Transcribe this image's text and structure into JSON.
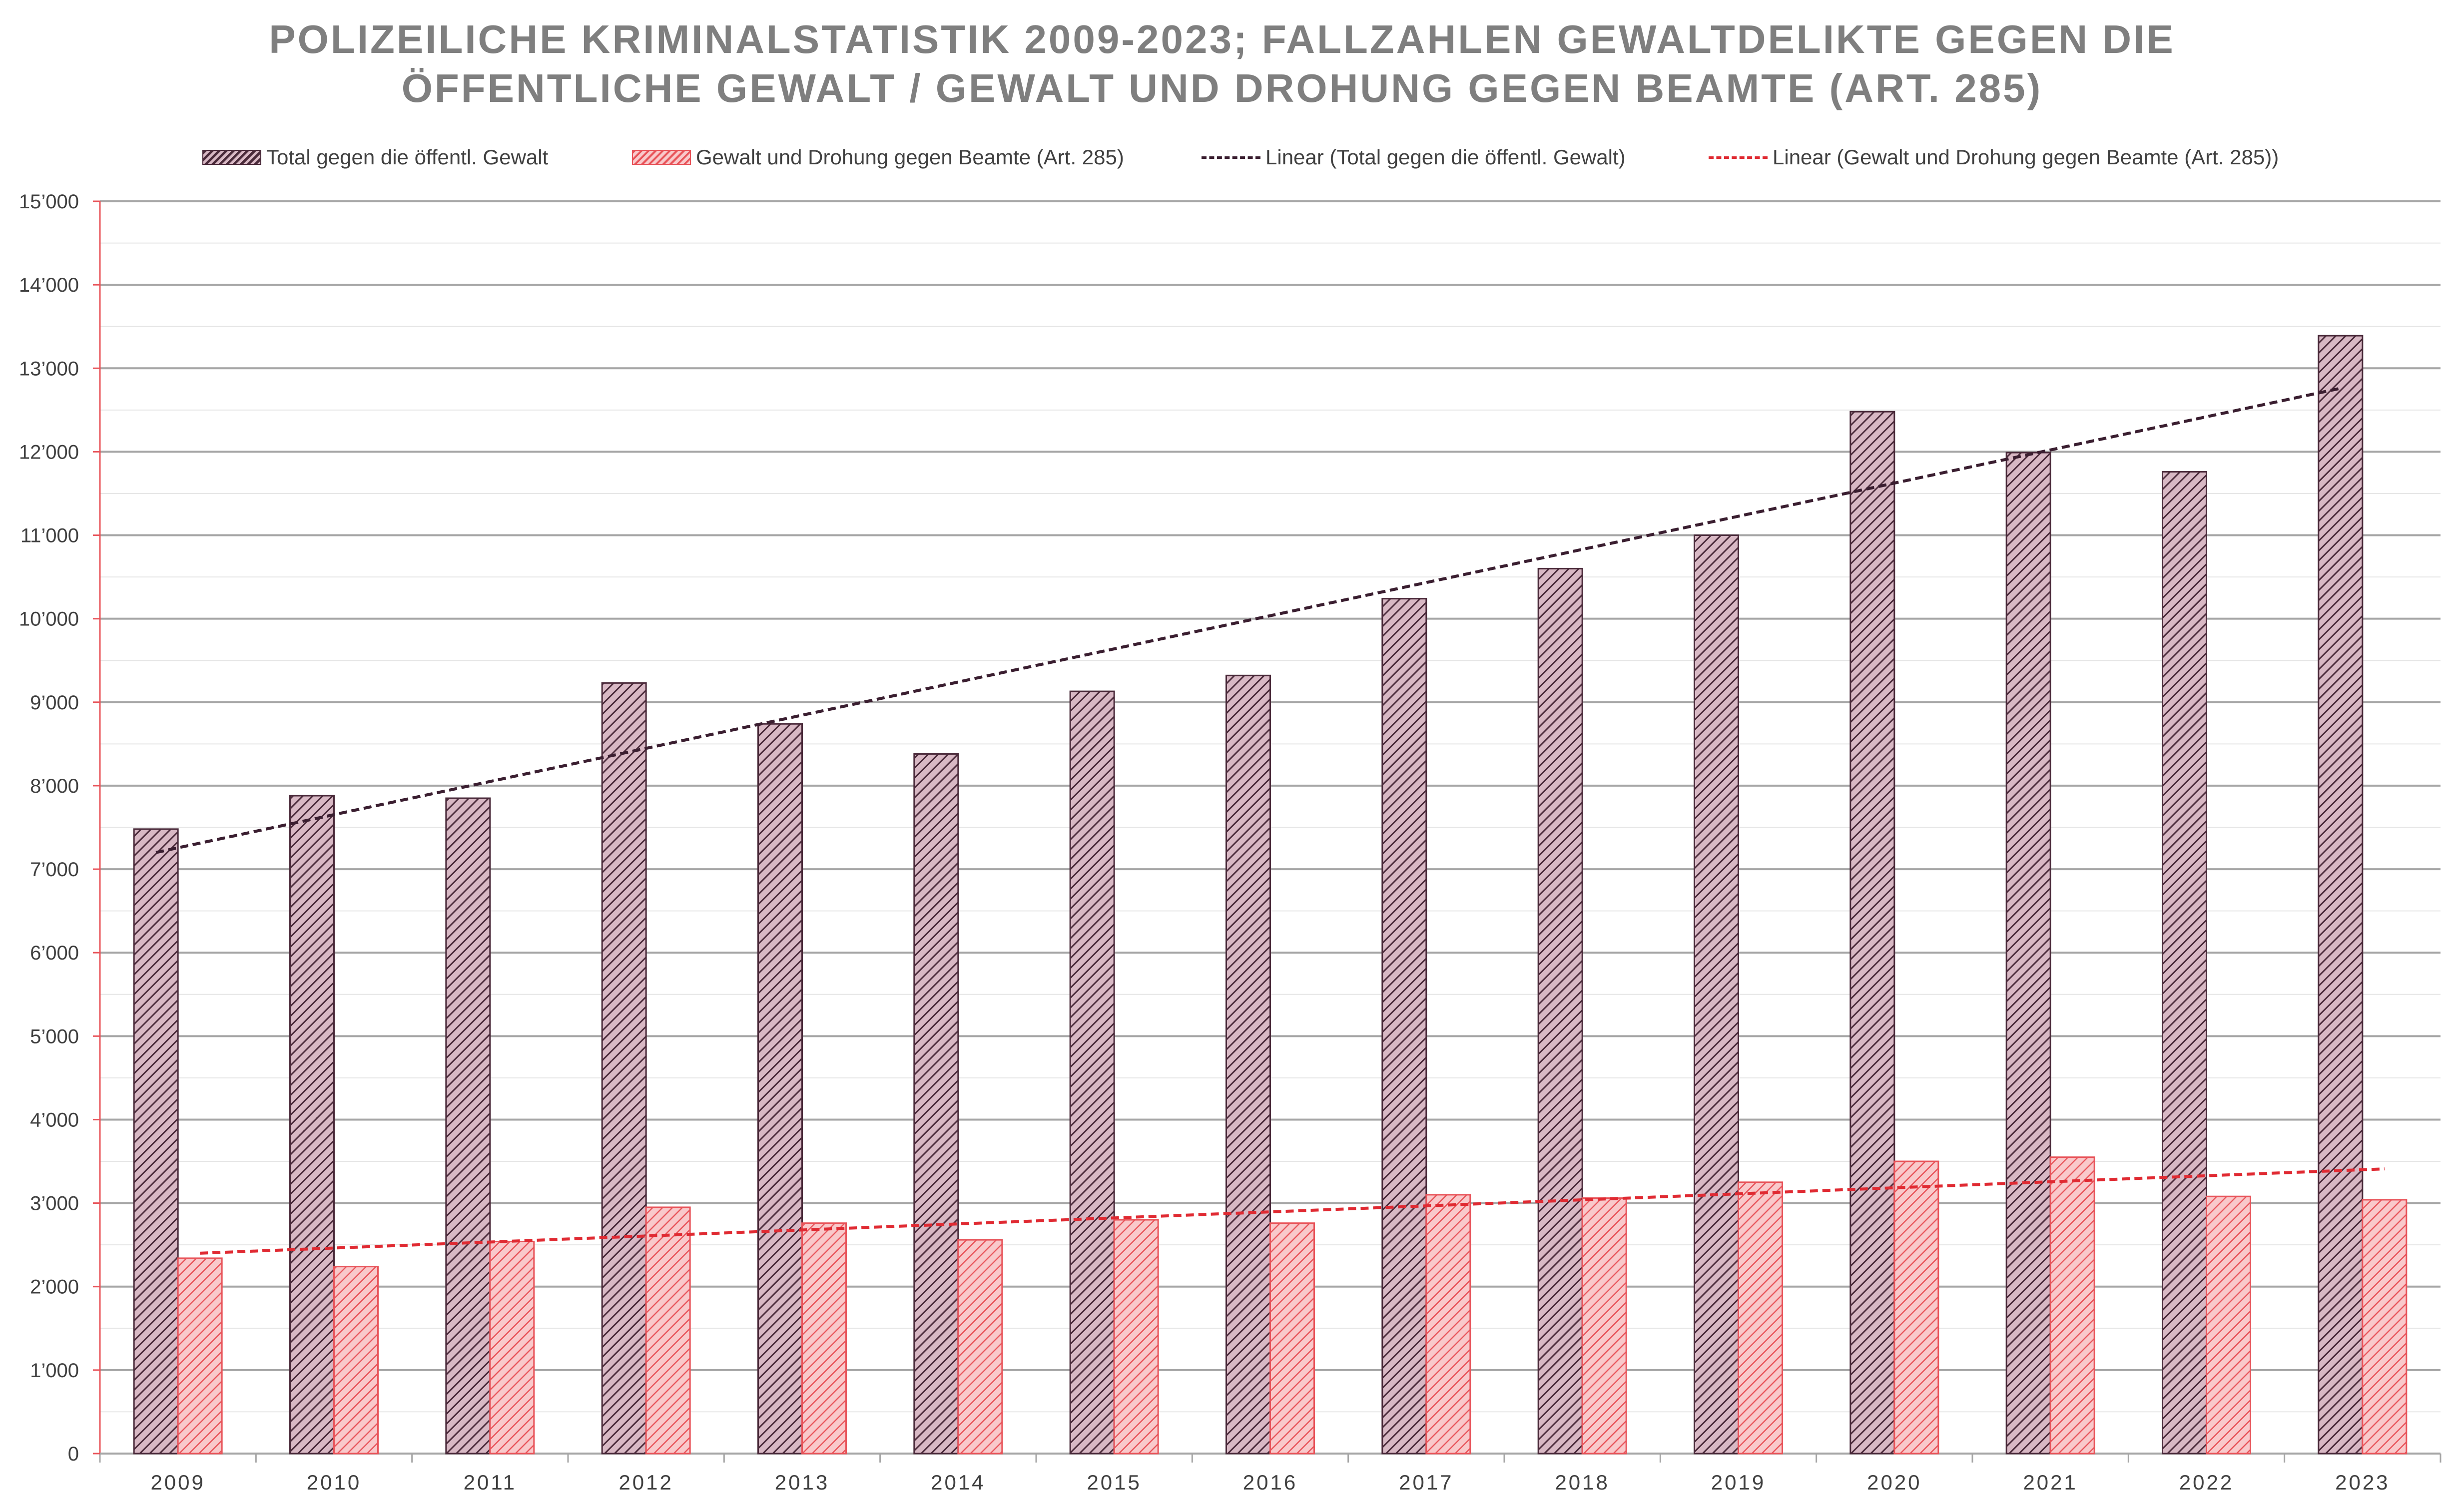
{
  "chart_data": {
    "type": "bar",
    "title_lines": [
      "POLIZEILICHE KRIMINALSTATISTIK 2009-2023; FALLZAHLEN GEWALTDELIKTE GEGEN DIE",
      "ÖFFENTLICHE GEWALT / GEWALT UND DROHUNG GEGEN BEAMTE (ART. 285)"
    ],
    "xlabel": "",
    "ylabel": "",
    "ylim": [
      0,
      15000
    ],
    "grid": true,
    "legend_position": "top",
    "categories": [
      "2009",
      "2010",
      "2011",
      "2012",
      "2013",
      "2014",
      "2015",
      "2016",
      "2017",
      "2018",
      "2019",
      "2020",
      "2021",
      "2022",
      "2023"
    ],
    "y_tick_labels": [
      "0",
      "1’000",
      "2’000",
      "3’000",
      "4’000",
      "5’000",
      "6’000",
      "7’000",
      "8’000",
      "9’000",
      "10’000",
      "11’000",
      "12’000",
      "13’000",
      "14’000",
      "15’000"
    ],
    "y_tick_values": [
      0,
      1000,
      2000,
      3000,
      4000,
      5000,
      6000,
      7000,
      8000,
      9000,
      10000,
      11000,
      12000,
      13000,
      14000,
      15000
    ],
    "series": [
      {
        "name": "Total gegen die öffentl. Gewalt",
        "values": [
          7480,
          7880,
          7850,
          9230,
          8740,
          8380,
          9130,
          9320,
          10240,
          10600,
          11000,
          12480,
          11990,
          11760,
          13390
        ],
        "color": "#4a2a3a",
        "fill": "#d8b8c4"
      },
      {
        "name": "Gewalt und Drohung gegen Beamte (Art. 285)",
        "values": [
          2340,
          2240,
          2540,
          2950,
          2760,
          2560,
          2800,
          2760,
          3100,
          3060,
          3250,
          3500,
          3550,
          3080,
          3040
        ],
        "color": "#e8545a",
        "fill": "#f9c9cb"
      }
    ],
    "trendlines": [
      {
        "name": "Linear (Total gegen die öffentl. Gewalt)",
        "of_series": 0,
        "start": 7200,
        "end": 12760,
        "color": "#3a1e30"
      },
      {
        "name": "Linear (Gewalt und Drohung gegen Beamte (Art. 285))",
        "of_series": 1,
        "start": 2400,
        "end": 3410,
        "color": "#e02a32"
      }
    ]
  }
}
